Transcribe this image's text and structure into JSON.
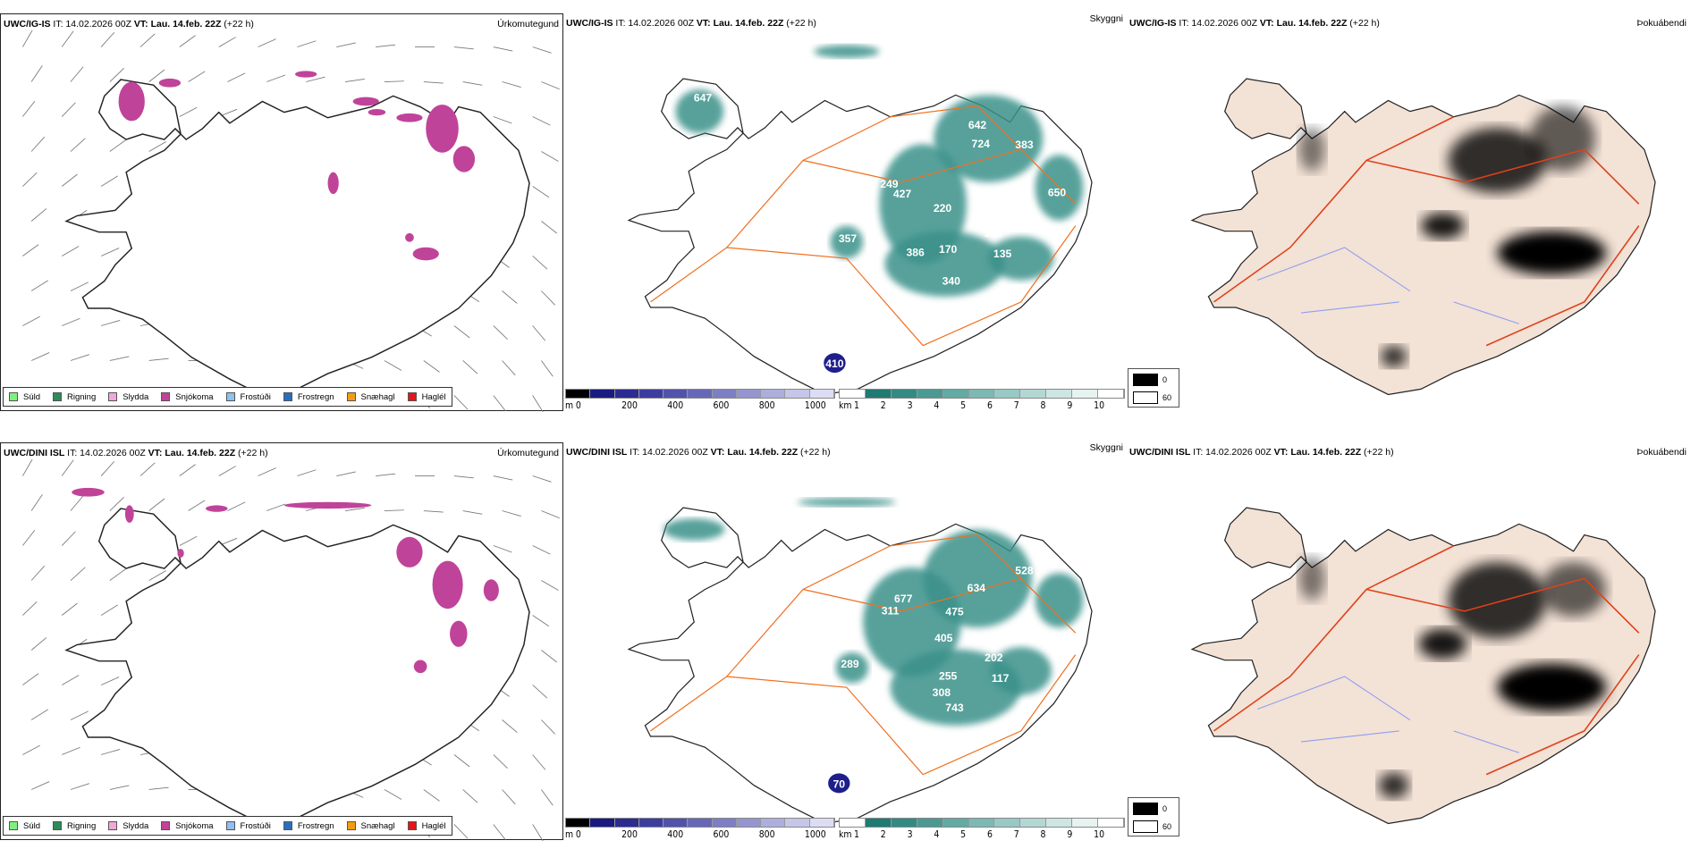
{
  "rows": [
    {
      "model": "UWC/IG-IS",
      "it_label": "IT: 14.02.2026 00Z",
      "vt_label": "VT: Lau. 14.feb. 22Z",
      "lead": "(+22 h)",
      "visibility_labels": [
        "647",
        "642",
        "724",
        "383",
        "249",
        "427",
        "220",
        "650",
        "249",
        "135",
        "386",
        "170",
        "340",
        "357",
        "410"
      ]
    },
    {
      "model": "UWC/DINI ISL",
      "it_label": "IT: 14.02.2026 00Z",
      "vt_label": "VT: Lau. 14.feb. 22Z",
      "lead": "(+22 h)",
      "visibility_labels": [
        "634",
        "528",
        "677",
        "311",
        "475",
        "405",
        "202",
        "117",
        "255",
        "308",
        "743",
        "289",
        "70"
      ]
    }
  ],
  "panel_titles": {
    "precip_type": "Úrkomutegund",
    "visibility": "Skyggni",
    "fog": "Þokuábendi"
  },
  "precip_legend": [
    {
      "label": "Súld",
      "color": "#7ff07f"
    },
    {
      "label": "Rigning",
      "color": "#2e8b57"
    },
    {
      "label": "Slydda",
      "color": "#f0a8d8"
    },
    {
      "label": "Snjókoma",
      "color": "#c0439a"
    },
    {
      "label": "Frostúði",
      "color": "#8ec0f0"
    },
    {
      "label": "Frostregn",
      "color": "#2a6fbf"
    },
    {
      "label": "Snæhagl",
      "color": "#f39c12"
    },
    {
      "label": "Haglél",
      "color": "#e8141c"
    }
  ],
  "height_bar": {
    "unit": "m",
    "ticks": [
      "0",
      "200",
      "400",
      "600",
      "800",
      "1000"
    ],
    "colors": [
      "#000000",
      "#1a1a80",
      "#2b2b92",
      "#3d3da0",
      "#5252ad",
      "#6767b8",
      "#7e7ec4",
      "#9595d0",
      "#aeaedc",
      "#c6c6e8",
      "#dcdcf4"
    ]
  },
  "visibility_bar": {
    "unit": "km",
    "ticks": [
      "1",
      "2",
      "3",
      "4",
      "5",
      "6",
      "7",
      "8",
      "9",
      "10"
    ],
    "colors": [
      "#ffffff",
      "#1e7a72",
      "#338a83",
      "#4a9a93",
      "#63aaa4",
      "#7db9b4",
      "#98c9c4",
      "#b3d8d4",
      "#cde6e3",
      "#e6f3f1",
      "#ffffff"
    ]
  },
  "fog_legend": [
    {
      "label": "0",
      "color": "#000000"
    },
    {
      "label": "60",
      "color": "#ffffff"
    }
  ],
  "colors": {
    "snow": "#c0439a",
    "vis": "#3a918a",
    "road": "#f07020",
    "land": "#f3e2d6",
    "coast": "#222222"
  }
}
